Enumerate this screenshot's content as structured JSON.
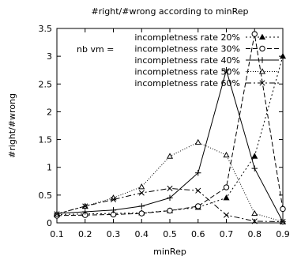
{
  "chart_data": {
    "type": "line",
    "title": "#right/#wrong according to minRep",
    "xlabel": "minRep",
    "ylabel": "#right/#wrong",
    "xlim": [
      0.1,
      0.9
    ],
    "ylim": [
      0,
      3.5
    ],
    "xticks": [
      "0.1",
      "0.2",
      "0.3",
      "0.4",
      "0.5",
      "0.6",
      "0.7",
      "0.8",
      "0.9"
    ],
    "yticks": [
      "0",
      "0.5",
      "1",
      "1.5",
      "2",
      "2.5",
      "3",
      "3.5"
    ],
    "x": [
      0.1,
      0.2,
      0.3,
      0.4,
      0.5,
      0.6,
      0.7,
      0.8,
      0.9
    ],
    "legend_position": "top-right",
    "legend_extra_label": "nb vm =",
    "grid": false,
    "series": [
      {
        "name": "incompletness rate 20%",
        "marker": "filled-triangle",
        "dash": "2,3",
        "values": [
          0.15,
          0.16,
          0.17,
          0.18,
          0.22,
          0.28,
          0.45,
          1.2,
          3.0
        ]
      },
      {
        "name": "incompletness rate 30%",
        "marker": "circle",
        "dash": "6,3",
        "values": [
          0.13,
          0.14,
          0.15,
          0.17,
          0.22,
          0.3,
          0.64,
          3.4,
          0.25
        ]
      },
      {
        "name": "incompletness rate 40%",
        "marker": "plus",
        "dash": "",
        "values": [
          0.17,
          0.2,
          0.23,
          0.3,
          0.45,
          0.9,
          2.75,
          0.98,
          0.02
        ]
      },
      {
        "name": "incompletness rate 50%",
        "marker": "triangle",
        "dash": "1,2",
        "values": [
          0.16,
          0.3,
          0.45,
          0.65,
          1.2,
          1.45,
          1.22,
          0.17,
          0.02
        ]
      },
      {
        "name": "incompletness rate 60%",
        "marker": "cross",
        "dash": "7,3,2,3",
        "values": [
          0.16,
          0.3,
          0.42,
          0.54,
          0.62,
          0.58,
          0.14,
          0.03,
          0.02
        ]
      }
    ]
  }
}
